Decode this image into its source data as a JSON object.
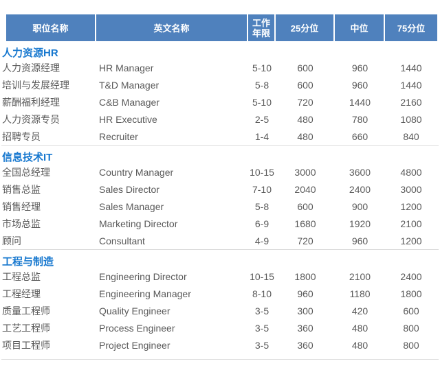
{
  "table": {
    "headers": [
      "职位名称",
      "英文名称",
      "工作\n年限",
      "25分位",
      "中位",
      "75分位"
    ],
    "sections": [
      {
        "title": "人力资源HR",
        "rows": [
          [
            "人力资源经理",
            "HR Manager",
            "5-10",
            "600",
            "960",
            "1440"
          ],
          [
            "培训与发展经理",
            "T&D Manager",
            "5-8",
            "600",
            "960",
            "1440"
          ],
          [
            "薪酬福利经理",
            "C&B Manager",
            "5-10",
            "720",
            "1440",
            "2160"
          ],
          [
            "人力资源专员",
            "HR Executive",
            "2-5",
            "480",
            "780",
            "1080"
          ],
          [
            "招聘专员",
            "Recruiter",
            "1-4",
            "480",
            "660",
            "840"
          ]
        ]
      },
      {
        "title": "信息技术IT",
        "rows": [
          [
            "全国总经理",
            "Country Manager",
            "10-15",
            "3000",
            "3600",
            "4800"
          ],
          [
            "销售总监",
            "Sales Director",
            "7-10",
            "2040",
            "2400",
            "3000"
          ],
          [
            "销售经理",
            "Sales Manager",
            "5-8",
            "600",
            "900",
            "1200"
          ],
          [
            "市场总监",
            "Marketing Director",
            "6-9",
            "1680",
            "1920",
            "2100"
          ],
          [
            "顾问",
            "Consultant",
            "4-9",
            "720",
            "960",
            "1200"
          ]
        ]
      },
      {
        "title": "工程与制造",
        "rows": [
          [
            "工程总监",
            "Engineering Director",
            "10-15",
            "1800",
            "2100",
            "2400"
          ],
          [
            "工程经理",
            "Engineering Manager",
            "8-10",
            "960",
            "1180",
            "1800"
          ],
          [
            "质量工程师",
            "Quality Engineer",
            "3-5",
            "300",
            "420",
            "600"
          ],
          [
            "工艺工程师",
            "Process Engineer",
            "3-5",
            "360",
            "480",
            "800"
          ],
          [
            "项目工程师",
            "Project Engineer",
            "3-5",
            "360",
            "480",
            "800"
          ]
        ]
      }
    ],
    "colors": {
      "header_bg": "#4f81bd",
      "header_text": "#ffffff",
      "section_title_text": "#1778cf",
      "body_text": "#595959",
      "divider": "#dcdcdc"
    }
  }
}
